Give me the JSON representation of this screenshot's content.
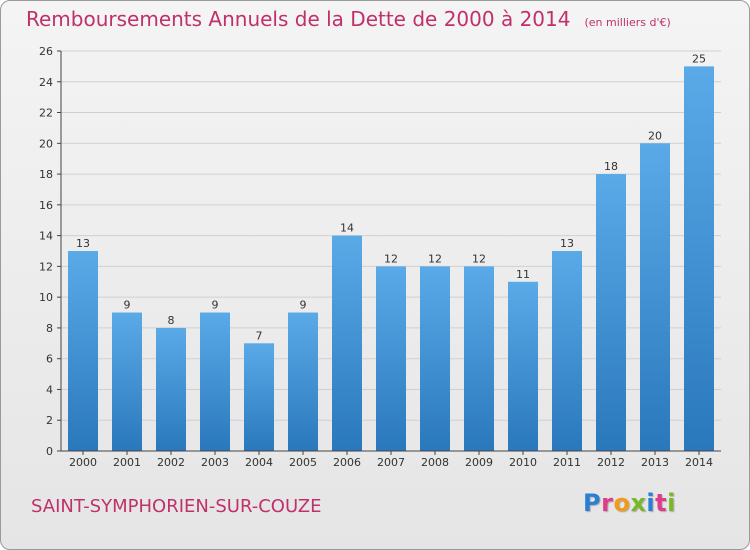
{
  "header": {
    "title": "Remboursements Annuels de la Dette de 2000 à 2014",
    "subtitle": "(en milliers d'€)"
  },
  "footer": {
    "commune": "SAINT-SYMPHORIEN-SUR-COUZE",
    "logo_text": "Proxiti",
    "logo_colors": [
      "#2a7fd4",
      "#e23a8a",
      "#f29a1c",
      "#7ab828",
      "#2a7fd4",
      "#e23a8a",
      "#7ab828"
    ]
  },
  "colors": {
    "bar_light": "#5aaae8",
    "bar_dark": "#2a78bc",
    "axis": "#444444",
    "grid": "#d0d0d0",
    "text": "#333333"
  },
  "chart_data": {
    "type": "bar",
    "categories": [
      "2000",
      "2001",
      "2002",
      "2003",
      "2004",
      "2005",
      "2006",
      "2007",
      "2008",
      "2009",
      "2010",
      "2011",
      "2012",
      "2013",
      "2014"
    ],
    "values": [
      13,
      9,
      8,
      9,
      7,
      9,
      14,
      12,
      12,
      12,
      11,
      13,
      18,
      20,
      25
    ],
    "ylim": [
      0,
      26
    ],
    "yticks": [
      0,
      2,
      4,
      6,
      8,
      10,
      12,
      14,
      16,
      18,
      20,
      22,
      24,
      26
    ],
    "grid": true,
    "data_labels": true
  }
}
